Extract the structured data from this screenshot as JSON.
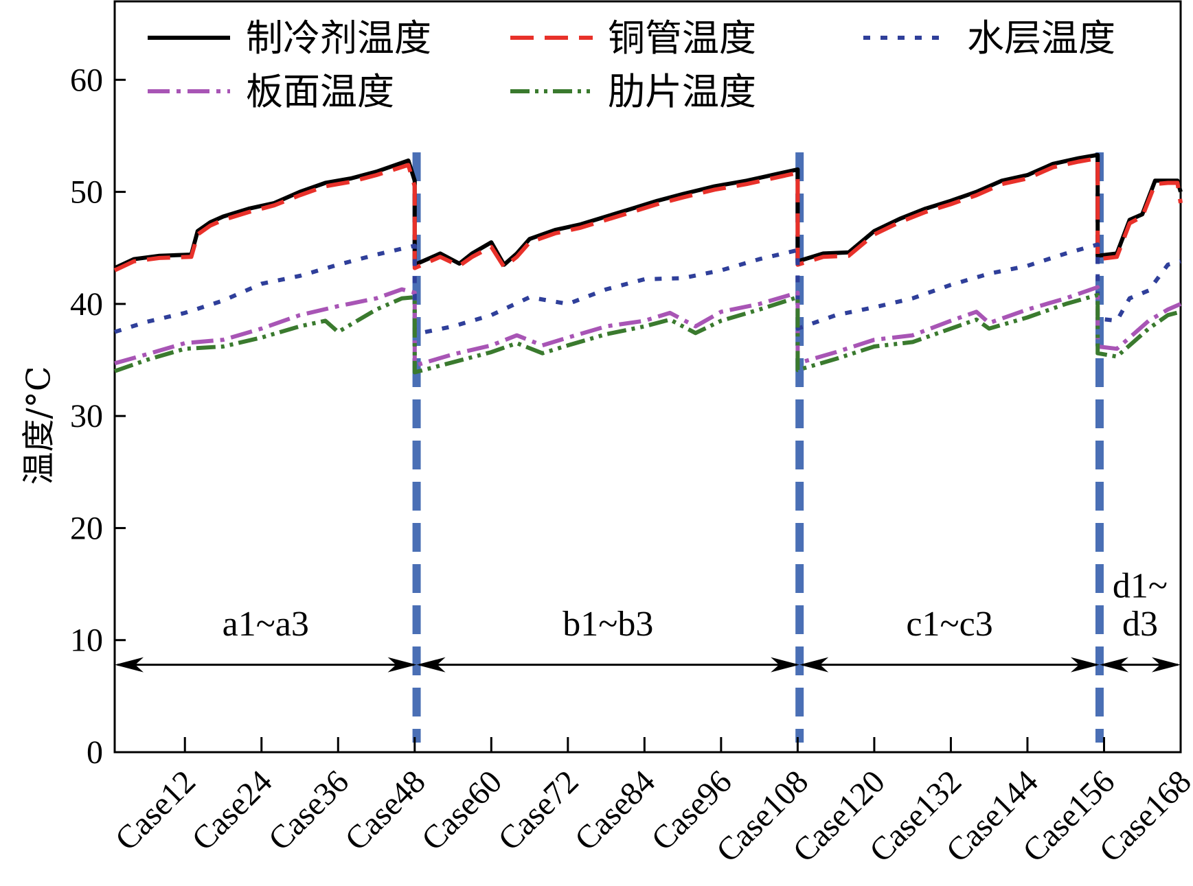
{
  "chart_data": {
    "type": "line",
    "title": "",
    "xlabel": "",
    "ylabel": "温度/°C",
    "ylim": [
      0,
      67
    ],
    "xlim": [
      1,
      168
    ],
    "grid": false,
    "legend_position": "top",
    "y_ticks": [
      0,
      10,
      20,
      30,
      40,
      50,
      60
    ],
    "x_ticks": [
      {
        "x": 12,
        "label": "Case12"
      },
      {
        "x": 24,
        "label": "Case24"
      },
      {
        "x": 36,
        "label": "Case36"
      },
      {
        "x": 48,
        "label": "Case48"
      },
      {
        "x": 60,
        "label": "Case60"
      },
      {
        "x": 72,
        "label": "Case72"
      },
      {
        "x": 84,
        "label": "Case84"
      },
      {
        "x": 96,
        "label": "Case96"
      },
      {
        "x": 108,
        "label": "Case108"
      },
      {
        "x": 120,
        "label": "Case120"
      },
      {
        "x": 132,
        "label": "Case132"
      },
      {
        "x": 144,
        "label": "Case144"
      },
      {
        "x": 156,
        "label": "Case156"
      },
      {
        "x": 168,
        "label": "Case168"
      }
    ],
    "series": [
      {
        "name": "制冷剂温度",
        "color": "#000000",
        "style": "solid",
        "x": [
          1,
          4,
          8,
          13,
          14,
          16,
          18,
          22,
          26,
          30,
          34,
          38,
          42,
          47,
          48,
          48,
          52,
          55,
          57,
          60,
          62,
          64,
          66,
          70,
          74,
          78,
          82,
          86,
          90,
          95,
          100,
          104,
          108,
          108,
          112,
          116,
          120,
          124,
          128,
          132,
          136,
          140,
          144,
          148,
          152,
          155,
          155,
          158,
          160,
          162,
          164,
          166,
          167.5,
          168
        ],
        "y": [
          43.2,
          44.0,
          44.3,
          44.4,
          46.5,
          47.3,
          47.8,
          48.5,
          49.0,
          50.0,
          50.8,
          51.2,
          51.8,
          52.8,
          51.0,
          43.5,
          44.5,
          43.6,
          44.5,
          45.5,
          43.5,
          44.5,
          45.8,
          46.6,
          47.1,
          47.8,
          48.5,
          49.2,
          49.8,
          50.5,
          51.0,
          51.5,
          52.0,
          43.8,
          44.5,
          44.6,
          46.5,
          47.6,
          48.5,
          49.2,
          50.0,
          51.0,
          51.5,
          52.5,
          53.0,
          53.3,
          44.3,
          44.5,
          47.5,
          48.0,
          51.0,
          51.0,
          51.0,
          50.0
        ]
      },
      {
        "name": "铜管温度",
        "color": "#e8312a",
        "style": "dashed",
        "x": [
          1,
          4,
          8,
          13,
          14,
          16,
          18,
          22,
          26,
          30,
          34,
          38,
          42,
          47,
          48,
          48,
          52,
          55,
          57,
          60,
          62,
          64,
          66,
          70,
          74,
          78,
          82,
          86,
          90,
          95,
          100,
          104,
          108,
          108,
          112,
          116,
          120,
          124,
          128,
          132,
          136,
          140,
          144,
          148,
          152,
          155,
          155,
          158,
          160,
          162,
          164,
          166,
          167.5,
          168
        ],
        "y": [
          43.0,
          43.8,
          44.1,
          44.2,
          46.2,
          47.0,
          47.5,
          48.2,
          48.8,
          49.7,
          50.5,
          50.9,
          51.5,
          52.4,
          50.5,
          43.2,
          44.2,
          43.4,
          44.2,
          45.1,
          43.3,
          44.2,
          45.5,
          46.3,
          46.8,
          47.5,
          48.2,
          48.9,
          49.5,
          50.2,
          50.7,
          51.2,
          51.7,
          43.5,
          44.2,
          44.3,
          46.2,
          47.3,
          48.2,
          48.9,
          49.7,
          50.7,
          51.2,
          52.2,
          52.7,
          53.0,
          44.0,
          44.2,
          47.2,
          47.8,
          50.7,
          50.8,
          50.8,
          49.0
        ]
      },
      {
        "name": "水层温度",
        "color": "#2f3f9a",
        "style": "dotted",
        "x": [
          1,
          6,
          12,
          18,
          24,
          30,
          36,
          42,
          48,
          48,
          54,
          60,
          66,
          72,
          78,
          84,
          90,
          96,
          102,
          108,
          108,
          114,
          120,
          126,
          132,
          138,
          144,
          150,
          155,
          155,
          158,
          160,
          163,
          166,
          168
        ],
        "y": [
          37.5,
          38.4,
          39.2,
          40.3,
          41.8,
          42.5,
          43.5,
          44.4,
          45.2,
          37.3,
          38.0,
          39.0,
          40.6,
          40.0,
          41.3,
          42.2,
          42.3,
          43.0,
          44.0,
          44.8,
          37.8,
          39.0,
          39.7,
          40.5,
          41.7,
          42.7,
          43.4,
          44.5,
          45.3,
          38.7,
          38.5,
          40.5,
          41.2,
          43.5,
          43.8
        ]
      },
      {
        "name": "板面温度",
        "color": "#a855b5",
        "style": "dashdot",
        "x": [
          1,
          6,
          12,
          18,
          24,
          30,
          36,
          42,
          46,
          48,
          48,
          54,
          60,
          64,
          68,
          72,
          78,
          84,
          88,
          92,
          96,
          102,
          108,
          108,
          114,
          120,
          126,
          132,
          136,
          138,
          144,
          150,
          155,
          155,
          158,
          160,
          163,
          166,
          168
        ],
        "y": [
          34.7,
          35.5,
          36.5,
          36.8,
          37.8,
          39.0,
          39.8,
          40.5,
          41.3,
          41.0,
          34.5,
          35.5,
          36.3,
          37.2,
          36.3,
          37.0,
          38.0,
          38.5,
          39.2,
          38.0,
          39.3,
          40.0,
          41.0,
          34.7,
          35.7,
          36.8,
          37.2,
          38.5,
          39.3,
          38.3,
          39.5,
          40.5,
          41.5,
          36.2,
          36.0,
          37.0,
          38.5,
          39.5,
          40.0
        ]
      },
      {
        "name": "肋片温度",
        "color": "#3a7a2e",
        "style": "dashdotdot",
        "x": [
          1,
          6,
          12,
          18,
          24,
          30,
          34,
          36,
          42,
          46,
          48,
          48,
          54,
          60,
          64,
          68,
          72,
          78,
          84,
          88,
          92,
          96,
          102,
          108,
          108,
          114,
          120,
          126,
          132,
          136,
          138,
          144,
          150,
          155,
          155,
          158,
          160,
          163,
          166,
          168
        ],
        "y": [
          34.0,
          35.0,
          36.0,
          36.2,
          37.0,
          38.0,
          38.5,
          37.5,
          39.5,
          40.5,
          40.6,
          33.9,
          34.8,
          35.7,
          36.5,
          35.6,
          36.3,
          37.3,
          38.0,
          38.6,
          37.4,
          38.5,
          39.5,
          40.6,
          34.1,
          35.1,
          36.2,
          36.6,
          37.8,
          38.6,
          37.8,
          38.8,
          40.0,
          40.8,
          35.6,
          35.3,
          36.3,
          37.8,
          39.0,
          39.3
        ]
      }
    ],
    "boundaries": [
      48.3,
      108.3,
      155.3
    ],
    "regions": [
      {
        "from": 1,
        "to": 48.3,
        "label": "a1~a3"
      },
      {
        "from": 48.3,
        "to": 108.3,
        "label": "b1~b3"
      },
      {
        "from": 108.3,
        "to": 155.3,
        "label": "c1~c3"
      },
      {
        "from": 155.3,
        "to": 168,
        "label": "d1~",
        "label2": "d3"
      }
    ],
    "arrow_y": 7.8
  }
}
